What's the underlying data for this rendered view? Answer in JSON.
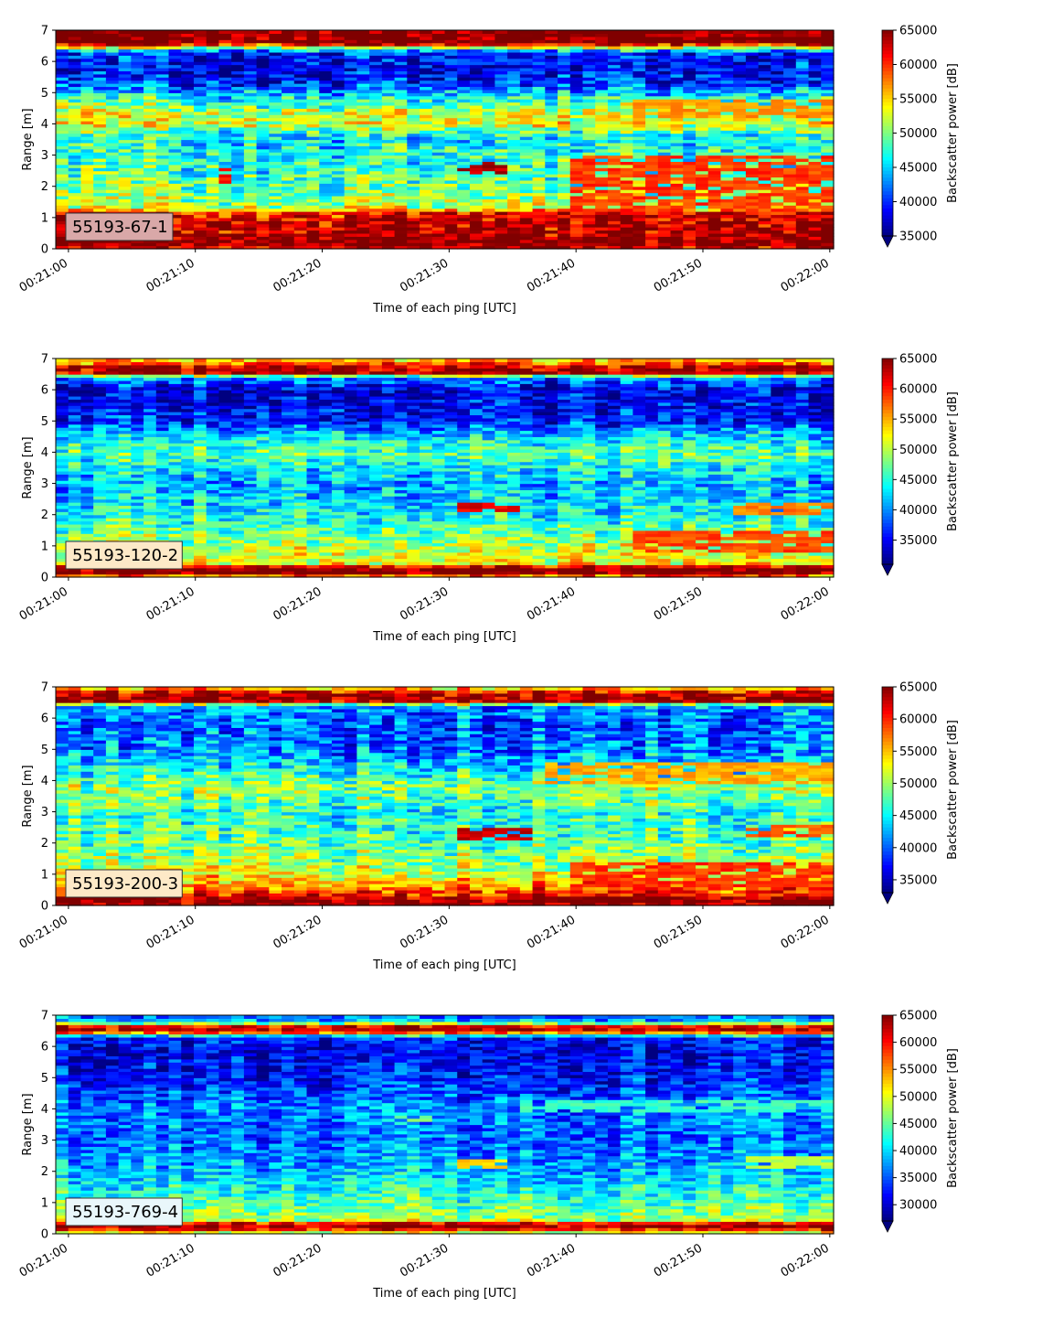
{
  "figure": {
    "xlabel": "Time of each ping [UTC]",
    "ylabel": "Range [m]",
    "colorbar_label": "Backscatter power [dB]",
    "x_ticks": [
      "00:21:00",
      "00:21:10",
      "00:21:20",
      "00:21:30",
      "00:21:40",
      "00:21:50",
      "00:22:00"
    ],
    "y_ticks": [
      "0",
      "1",
      "2",
      "3",
      "4",
      "5",
      "6",
      "7"
    ],
    "colormap": "jet"
  },
  "chart_data": [
    {
      "type": "heatmap",
      "label": "55193-67-1",
      "label_box_color": "#d9a8a8",
      "xlabel": "Time of each ping [UTC]",
      "ylabel": "Range [m]",
      "colorbar_label": "Backscatter power [dB]",
      "xlim": [
        "00:20:59",
        "00:22:00.3"
      ],
      "ylim": [
        0,
        7
      ],
      "clim": [
        35000,
        65000
      ],
      "colorbar_ticks": [
        35000,
        40000,
        45000,
        50000,
        55000,
        60000,
        65000
      ],
      "n_pings": 62,
      "profile": [
        [
          0.0,
          62000
        ],
        [
          0.2,
          66000
        ],
        [
          0.45,
          64000
        ],
        [
          0.8,
          63000
        ],
        [
          1.15,
          62000
        ],
        [
          1.3,
          52000
        ],
        [
          1.8,
          50000
        ],
        [
          2.5,
          48000
        ],
        [
          3.2,
          47000
        ],
        [
          3.6,
          46000
        ],
        [
          4.0,
          53000
        ],
        [
          4.4,
          52000
        ],
        [
          4.9,
          46000
        ],
        [
          5.3,
          40000
        ],
        [
          5.8,
          38000
        ],
        [
          6.3,
          40000
        ],
        [
          6.5,
          56000
        ],
        [
          6.6,
          66000
        ],
        [
          7.0,
          66000
        ]
      ],
      "features": [
        {
          "t0": 30.5,
          "t1": 34.5,
          "r0": 2.4,
          "r1": 2.8,
          "value": 65000
        },
        {
          "t0": 11.5,
          "t1": 12.5,
          "r0": 2.1,
          "r1": 2.6,
          "value": 62000
        },
        {
          "t0": 40.0,
          "t1": 61.0,
          "r0": 1.0,
          "r1": 3.0,
          "value": 61000
        },
        {
          "t0": 44.0,
          "t1": 61.0,
          "r0": 4.2,
          "r1": 4.8,
          "value": 58000
        }
      ]
    },
    {
      "type": "heatmap",
      "label": "55193-120-2",
      "label_box_color": "#fde9c7",
      "xlabel": "Time of each ping [UTC]",
      "ylabel": "Range [m]",
      "colorbar_label": "Backscatter power [dB]",
      "xlim": [
        "00:20:59",
        "00:22:00.3"
      ],
      "ylim": [
        0,
        7
      ],
      "clim": [
        31000,
        65000
      ],
      "colorbar_ticks": [
        35000,
        40000,
        45000,
        50000,
        55000,
        60000,
        65000
      ],
      "n_pings": 62,
      "profile": [
        [
          0.0,
          48000
        ],
        [
          0.1,
          66000
        ],
        [
          0.3,
          66000
        ],
        [
          0.45,
          52000
        ],
        [
          1.0,
          50000
        ],
        [
          1.5,
          47000
        ],
        [
          2.0,
          44000
        ],
        [
          3.0,
          41000
        ],
        [
          3.6,
          44000
        ],
        [
          4.0,
          47000
        ],
        [
          4.6,
          42000
        ],
        [
          5.0,
          36000
        ],
        [
          5.5,
          35000
        ],
        [
          6.0,
          34000
        ],
        [
          6.4,
          40000
        ],
        [
          6.55,
          64000
        ],
        [
          6.75,
          62000
        ],
        [
          7.0,
          52000
        ]
      ],
      "features": [
        {
          "t0": 31.0,
          "t1": 36.0,
          "r0": 2.1,
          "r1": 2.4,
          "value": 63000
        },
        {
          "t0": 44.0,
          "t1": 61.0,
          "r0": 0.8,
          "r1": 1.5,
          "value": 60000
        },
        {
          "t0": 52.0,
          "t1": 61.0,
          "r0": 2.0,
          "r1": 2.4,
          "value": 58000
        }
      ]
    },
    {
      "type": "heatmap",
      "label": "55193-200-3",
      "label_box_color": "#fde9c7",
      "xlabel": "Time of each ping [UTC]",
      "ylabel": "Range [m]",
      "colorbar_label": "Backscatter power [dB]",
      "xlim": [
        "00:20:59",
        "00:22:00.3"
      ],
      "ylim": [
        0,
        7
      ],
      "clim": [
        33000,
        65000
      ],
      "colorbar_ticks": [
        35000,
        40000,
        45000,
        50000,
        55000,
        60000,
        65000
      ],
      "n_pings": 62,
      "profile": [
        [
          0.0,
          64000
        ],
        [
          0.2,
          66000
        ],
        [
          0.4,
          60000
        ],
        [
          0.8,
          55000
        ],
        [
          1.2,
          51000
        ],
        [
          2.0,
          48000
        ],
        [
          3.0,
          46000
        ],
        [
          3.8,
          50000
        ],
        [
          4.2,
          46000
        ],
        [
          5.0,
          41000
        ],
        [
          5.8,
          40000
        ],
        [
          6.4,
          42000
        ],
        [
          6.55,
          64000
        ],
        [
          6.8,
          64000
        ],
        [
          7.0,
          52000
        ]
      ],
      "features": [
        {
          "t0": 31.0,
          "t1": 37.0,
          "r0": 2.1,
          "r1": 2.5,
          "value": 64000
        },
        {
          "t0": 38.0,
          "t1": 61.0,
          "r0": 3.9,
          "r1": 4.6,
          "value": 57000
        },
        {
          "t0": 40.0,
          "t1": 61.0,
          "r0": 0.6,
          "r1": 1.4,
          "value": 61000
        },
        {
          "t0": 53.0,
          "t1": 61.0,
          "r0": 2.2,
          "r1": 2.6,
          "value": 60000
        }
      ]
    },
    {
      "type": "heatmap",
      "label": "55193-769-4",
      "label_box_color": "#e9f7fb",
      "xlabel": "Time of each ping [UTC]",
      "ylabel": "Range [m]",
      "colorbar_label": "Backscatter power [dB]",
      "xlim": [
        "00:20:59",
        "00:22:00.3"
      ],
      "ylim": [
        0,
        7
      ],
      "clim": [
        27000,
        65000
      ],
      "colorbar_ticks": [
        30000,
        35000,
        40000,
        45000,
        50000,
        55000,
        60000,
        65000
      ],
      "n_pings": 62,
      "profile": [
        [
          0.0,
          45000
        ],
        [
          0.15,
          60000
        ],
        [
          0.3,
          66000
        ],
        [
          0.45,
          48000
        ],
        [
          1.0,
          44000
        ],
        [
          2.0,
          39000
        ],
        [
          3.0,
          36000
        ],
        [
          4.0,
          37000
        ],
        [
          5.0,
          33000
        ],
        [
          5.8,
          31000
        ],
        [
          6.3,
          33000
        ],
        [
          6.5,
          64000
        ],
        [
          6.65,
          60000
        ],
        [
          6.8,
          40000
        ],
        [
          7.0,
          35000
        ]
      ],
      "features": [
        {
          "t0": 31.0,
          "t1": 35.0,
          "r0": 2.1,
          "r1": 2.4,
          "value": 54000
        },
        {
          "t0": 26.0,
          "t1": 29.0,
          "r0": 3.6,
          "r1": 3.8,
          "value": 47000
        },
        {
          "t0": 36.0,
          "t1": 61.0,
          "r0": 3.9,
          "r1": 4.3,
          "value": 45000
        },
        {
          "t0": 53.0,
          "t1": 61.0,
          "r0": 2.1,
          "r1": 2.5,
          "value": 50000
        }
      ]
    }
  ]
}
